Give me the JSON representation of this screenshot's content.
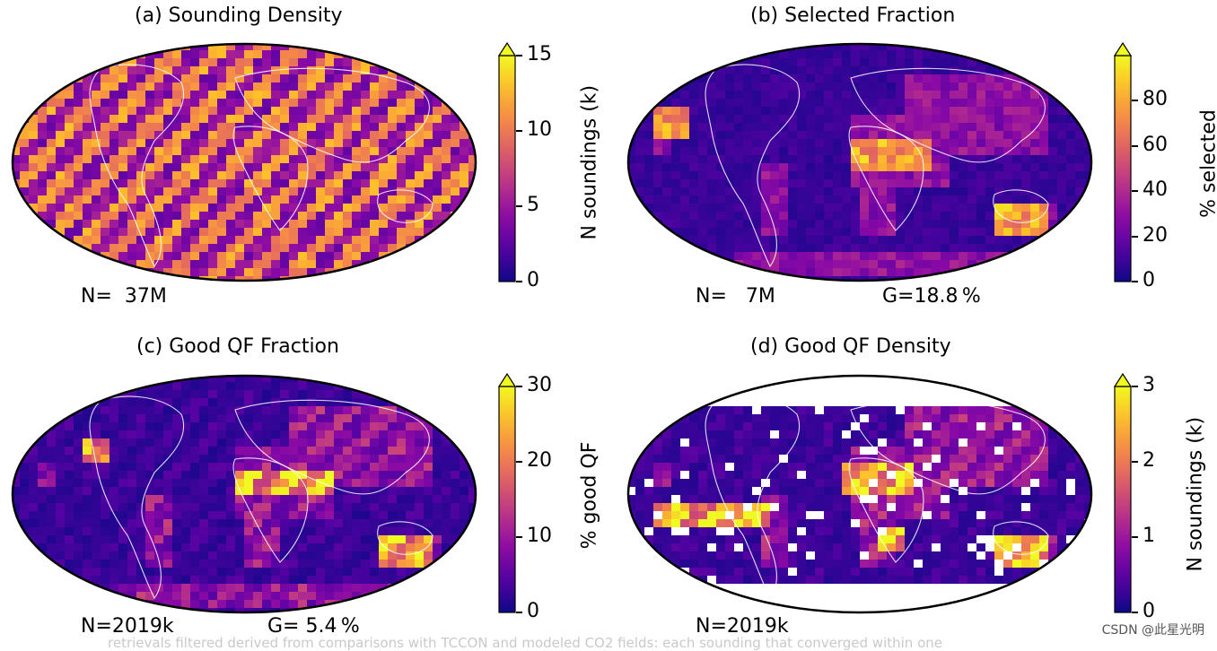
{
  "chart_data": [
    {
      "type": "heatmap",
      "title": "(a) Sounding Density",
      "colorbar_label": "N soundings (k)",
      "colorbar_range": [
        0,
        15
      ],
      "colorbar_ticks": [
        "0",
        "5",
        "10",
        "15"
      ],
      "colorbar_extend": "max",
      "colormap": "plasma",
      "projection": "Robinson",
      "annotations": [
        "N=  37M"
      ],
      "field": "swath stripes, nearly uniform coverage",
      "level_mean": 0.55
    },
    {
      "type": "heatmap",
      "title": "(b) Selected Fraction",
      "colorbar_label": "% selected",
      "colorbar_range": [
        0,
        100
      ],
      "colorbar_ticks": [
        "0",
        "20",
        "40",
        "60",
        "80"
      ],
      "colorbar_extend": "max",
      "colormap": "plasma",
      "projection": "Robinson",
      "annotations": [
        "N=   7M",
        "G=18.8 %"
      ],
      "field": "highest over deserts (Sahara, Arabia, Australia)",
      "level_mean": 0.2
    },
    {
      "type": "heatmap",
      "title": "(c) Good QF Fraction",
      "colorbar_label": "% good QF",
      "colorbar_range": [
        0,
        30
      ],
      "colorbar_ticks": [
        "0",
        "10",
        "20",
        "30"
      ],
      "colorbar_extend": "max",
      "colormap": "plasma",
      "projection": "Robinson",
      "annotations": [
        "N=2019k",
        "G= 5.4 %"
      ],
      "field": "high over Sahara, southern Africa, Australia, subtropical oceans",
      "level_mean": 0.25
    },
    {
      "type": "heatmap",
      "title": "(d) Good QF Density",
      "colorbar_label": "N soundings (k)",
      "colorbar_range": [
        0,
        3
      ],
      "colorbar_ticks": [
        "0",
        "1",
        "2",
        "3"
      ],
      "colorbar_extend": "max",
      "colormap": "plasma",
      "projection": "Robinson",
      "annotations": [
        "N=2019k"
      ],
      "field": "no data at high latitudes, white gaps in swaths",
      "level_mean": 0.25
    }
  ],
  "footer": "retrievals filtered derived from comparisons with TCCON and modeled CO2 fields: each sounding that converged within one",
  "watermark": "CSDN @此星光明"
}
